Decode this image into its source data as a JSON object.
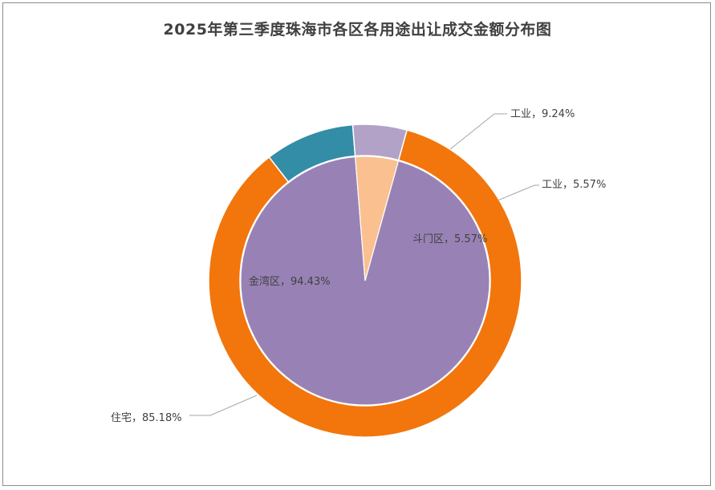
{
  "chart_data": [
    {
      "type": "pie",
      "ring": "inner",
      "title": "2025年第三季度珠海市各区各用途出让成交金额分布图",
      "slices": [
        {
          "label": "金湾区",
          "value": 94.43,
          "display": "金湾区，94.43%",
          "color": "#9882b5"
        },
        {
          "label": "斗门区",
          "value": 5.57,
          "display": "斗门区，5.57%",
          "color": "#fac090"
        }
      ]
    },
    {
      "type": "pie",
      "ring": "outer",
      "slices": [
        {
          "label": "住宅",
          "value": 85.18,
          "display": "住宅，85.18%",
          "color": "#f2760c"
        },
        {
          "label": "工业",
          "value": 9.24,
          "display": "工业，9.24%",
          "color": "#348da6"
        },
        {
          "label": "工业",
          "value": 5.57,
          "display": "工业，5.57%",
          "color": "#b3a2c7"
        }
      ]
    }
  ]
}
